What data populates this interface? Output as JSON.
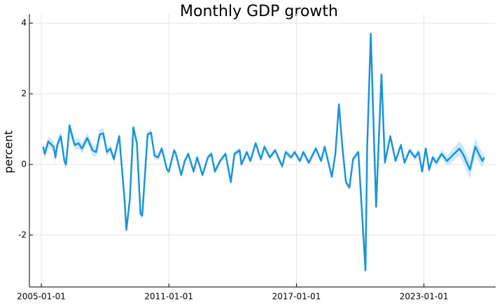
{
  "chart_data": {
    "type": "line",
    "title": "Monthly GDP growth",
    "y_label": "percent",
    "x": [
      "2005-02-01",
      "2005-03-01",
      "2005-05-01",
      "2005-08-01",
      "2005-09-01",
      "2005-10-01",
      "2005-12-01",
      "2006-02-01",
      "2006-03-01",
      "2006-05-01",
      "2006-07-01",
      "2006-08-01",
      "2006-10-01",
      "2006-12-01",
      "2007-03-01",
      "2007-06-01",
      "2007-08-01",
      "2007-10-01",
      "2007-12-01",
      "2008-02-01",
      "2008-04-01",
      "2008-06-01",
      "2008-09-01",
      "2008-10-01",
      "2008-12-01",
      "2009-01-01",
      "2009-03-01",
      "2009-05-01",
      "2009-07-01",
      "2009-09-01",
      "2009-10-01",
      "2010-01-01",
      "2010-03-01",
      "2010-05-01",
      "2010-07-01",
      "2010-09-01",
      "2010-12-01",
      "2011-01-01",
      "2011-04-01",
      "2011-05-01",
      "2011-08-01",
      "2011-10-01",
      "2011-12-01",
      "2012-03-01",
      "2012-05-01",
      "2012-08-01",
      "2012-11-01",
      "2013-01-01",
      "2013-03-01",
      "2013-06-01",
      "2013-09-01",
      "2013-12-01",
      "2014-02-01",
      "2014-05-01",
      "2014-06-01",
      "2014-09-01",
      "2014-11-01",
      "2015-02-01",
      "2015-05-01",
      "2015-07-01",
      "2015-10-01",
      "2016-01-01",
      "2016-05-01",
      "2016-07-01",
      "2016-10-01",
      "2016-12-01",
      "2017-03-01",
      "2017-05-01",
      "2017-08-01",
      "2017-12-01",
      "2018-03-01",
      "2018-05-01",
      "2018-09-01",
      "2018-11-01",
      "2019-01-01",
      "2019-03-01",
      "2019-05-01",
      "2019-07-01",
      "2019-09-01",
      "2019-12-01",
      "2020-04-01",
      "2020-05-01",
      "2020-07-01",
      "2020-10-01",
      "2021-01-01",
      "2021-03-01",
      "2021-06-01",
      "2021-09-01",
      "2021-12-01",
      "2022-02-01",
      "2022-05-01",
      "2022-08-01",
      "2022-10-01",
      "2022-12-01",
      "2023-02-01",
      "2023-04-01",
      "2023-06-01",
      "2023-08-01",
      "2023-11-01",
      "2024-02-01",
      "2024-09-01",
      "2024-11-01",
      "2025-03-01",
      "2025-06-01",
      "2025-10-01",
      "2025-11-01"
    ],
    "series": [
      {
        "name": "GDP growth",
        "color": "#1a94d8",
        "band_color": "#cde9f8",
        "values": [
          0.5,
          0.3,
          0.65,
          0.5,
          0.2,
          0.55,
          0.8,
          0.1,
          0.0,
          1.1,
          0.7,
          0.55,
          0.6,
          0.45,
          0.75,
          0.4,
          0.35,
          0.85,
          0.88,
          0.35,
          0.45,
          0.15,
          0.8,
          0.2,
          -1.0,
          -1.85,
          -1.0,
          1.05,
          0.6,
          -1.4,
          -1.45,
          0.85,
          0.9,
          0.25,
          0.2,
          0.45,
          -0.15,
          -0.2,
          0.4,
          0.3,
          -0.3,
          0.1,
          0.3,
          -0.2,
          0.2,
          -0.3,
          0.2,
          0.3,
          -0.2,
          0.1,
          0.3,
          -0.5,
          0.3,
          0.4,
          0.0,
          0.35,
          0.1,
          0.6,
          0.15,
          0.5,
          0.2,
          0.4,
          -0.05,
          0.35,
          0.2,
          0.35,
          0.1,
          0.35,
          0.05,
          0.45,
          0.1,
          0.5,
          -0.35,
          0.3,
          1.7,
          0.5,
          -0.5,
          -0.65,
          0.15,
          0.35,
          -3.0,
          0.5,
          3.7,
          -1.2,
          2.55,
          0.05,
          0.8,
          0.1,
          0.55,
          0.05,
          0.4,
          0.2,
          0.35,
          -0.2,
          0.45,
          -0.15,
          0.2,
          0.05,
          0.3,
          0.1,
          0.45,
          0.3,
          -0.15,
          0.5,
          0.1,
          0.2
        ],
        "errors": [
          0.15,
          0.15,
          0.15,
          0.15,
          0.15,
          0.15,
          0.15,
          0.15,
          0.15,
          0.15,
          0.15,
          0.15,
          0.15,
          0.15,
          0.15,
          0.15,
          0.15,
          0.15,
          0.15,
          0.12,
          0.12,
          0.12,
          0.12,
          0.1,
          0.1,
          0.1,
          0.1,
          0.1,
          0.1,
          0.1,
          0.1,
          0.1,
          0.1,
          0.1,
          0.1,
          0.1,
          0.08,
          0.08,
          0.08,
          0.08,
          0.08,
          0.08,
          0.08,
          0.08,
          0.08,
          0.08,
          0.08,
          0.08,
          0.08,
          0.08,
          0.08,
          0.08,
          0.08,
          0.08,
          0.08,
          0.08,
          0.08,
          0.08,
          0.08,
          0.08,
          0.08,
          0.08,
          0.08,
          0.08,
          0.08,
          0.08,
          0.08,
          0.08,
          0.08,
          0.08,
          0.08,
          0.08,
          0.08,
          0.08,
          0.08,
          0.08,
          0.08,
          0.08,
          0.08,
          0.08,
          0.08,
          0.08,
          0.08,
          0.08,
          0.08,
          0.08,
          0.08,
          0.08,
          0.08,
          0.08,
          0.08,
          0.1,
          0.1,
          0.1,
          0.1,
          0.1,
          0.1,
          0.1,
          0.12,
          0.15,
          0.2,
          0.25,
          0.25,
          0.25,
          0.2,
          0.15
        ]
      }
    ],
    "xlim": [
      "2004-06-10",
      "2026-05-16"
    ],
    "xticks": [
      "2005-01-01",
      "2011-01-01",
      "2017-01-01",
      "2023-01-01"
    ],
    "ylim": [
      -3.47,
      4.26
    ],
    "yticks": [
      -2,
      0,
      2,
      4
    ],
    "grid": true
  }
}
